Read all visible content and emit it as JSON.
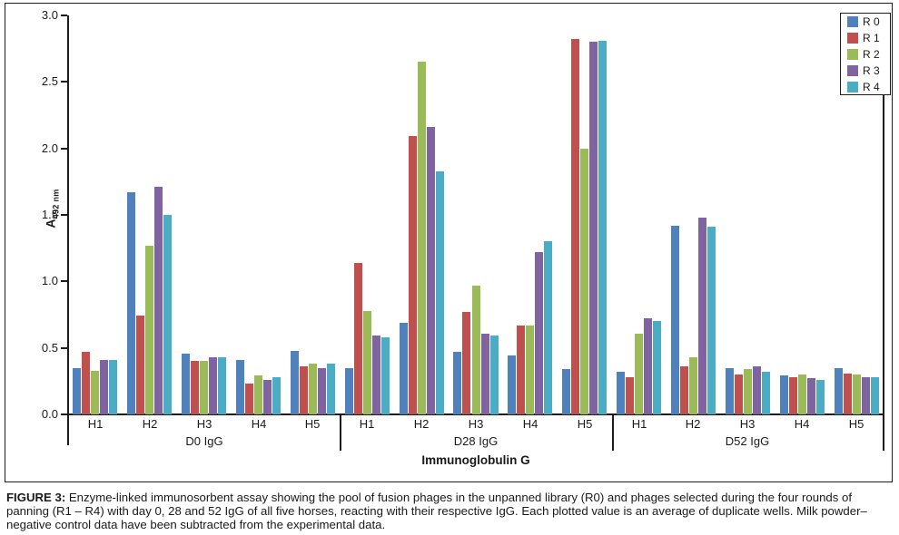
{
  "figure": {
    "caption_label": "FIGURE 3:",
    "caption_text": "Enzyme-linked immunosorbent assay showing the pool of fusion phages in the unpanned library (R0) and phages selected during the four rounds of panning (R1 – R4) with day 0, 28 and 52 IgG of all five horses, reacting with their respective IgG. Each plotted value is an average of duplicate wells. Milk powder–negative control data have been subtracted from the experimental data."
  },
  "chart_data": {
    "type": "bar",
    "title": "",
    "xlabel": "Immunoglobulin G",
    "ylabel_main": "A",
    "ylabel_sub": "492 nm",
    "ylim": [
      0,
      3.0
    ],
    "ytick_step": 0.5,
    "yticks": [
      "0.0",
      "0.5",
      "1.0",
      "1.5",
      "2.0",
      "2.5",
      "3.0"
    ],
    "grid": false,
    "legend_position": "top-right",
    "sections": [
      {
        "label": "D0 IgG",
        "categories": [
          "H1",
          "H2",
          "H3",
          "H4",
          "H5"
        ]
      },
      {
        "label": "D28 IgG",
        "categories": [
          "H1",
          "H2",
          "H3",
          "H4",
          "H5"
        ]
      },
      {
        "label": "D52 IgG",
        "categories": [
          "H1",
          "H2",
          "H3",
          "H4",
          "H5"
        ]
      }
    ],
    "series": [
      {
        "name": "R 0",
        "color": "#4F81BD",
        "values": [
          [
            0.35,
            1.67,
            0.46,
            0.41,
            0.48
          ],
          [
            0.35,
            0.69,
            0.47,
            0.44,
            0.34
          ],
          [
            0.32,
            1.42,
            0.35,
            0.29,
            0.35
          ]
        ]
      },
      {
        "name": "R 1",
        "color": "#C0504D",
        "values": [
          [
            0.47,
            0.74,
            0.4,
            0.23,
            0.36
          ],
          [
            1.14,
            2.09,
            0.77,
            0.67,
            2.82
          ],
          [
            0.28,
            0.36,
            0.3,
            0.28,
            0.31
          ]
        ]
      },
      {
        "name": "R 2",
        "color": "#9BBB59",
        "values": [
          [
            0.33,
            1.27,
            0.4,
            0.29,
            0.38
          ],
          [
            0.78,
            2.65,
            0.97,
            0.67,
            2.0
          ],
          [
            0.61,
            0.43,
            0.34,
            0.3,
            0.3
          ]
        ]
      },
      {
        "name": "R 3",
        "color": "#8064A2",
        "values": [
          [
            0.41,
            1.71,
            0.43,
            0.26,
            0.35
          ],
          [
            0.59,
            2.16,
            0.61,
            1.22,
            2.8
          ],
          [
            0.72,
            1.48,
            0.36,
            0.27,
            0.28
          ]
        ]
      },
      {
        "name": "R 4",
        "color": "#4BACC6",
        "values": [
          [
            0.41,
            1.5,
            0.43,
            0.28,
            0.38
          ],
          [
            0.58,
            1.83,
            0.59,
            1.3,
            2.81
          ],
          [
            0.7,
            1.41,
            0.32,
            0.26,
            0.28
          ]
        ]
      }
    ]
  }
}
